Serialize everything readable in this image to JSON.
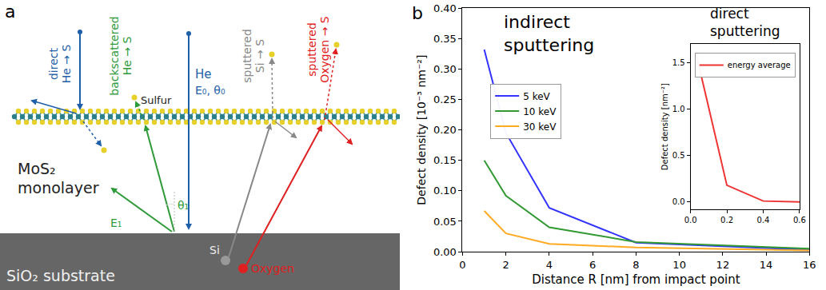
{
  "diagram": {
    "label": "a",
    "substrate": "SiO₂ substrate",
    "layer": [
      "MoS₂",
      "monolayer"
    ],
    "direct": [
      "direct",
      "He → S"
    ],
    "backscattered": [
      "backscattered",
      "He → S"
    ],
    "sulfur": "Sulfur",
    "incident": [
      "He",
      "E₀, θ₀"
    ],
    "exit_angle": [
      "E₁",
      "θ₁"
    ],
    "sputtered_si": [
      "sputtered",
      "Si → S"
    ],
    "sputtered_o": [
      "sputtered",
      "Oxygen → S"
    ],
    "si": "Si",
    "oxygen": "Oxygen"
  },
  "chart_data": [
    {
      "type": "line",
      "title": "indirect sputtering",
      "annotations": [
        "b"
      ],
      "x_label": "Distance R [nm] from impact point",
      "y_label": "Defect density [10⁻³ nm⁻²]",
      "x": [
        1,
        2,
        4,
        8,
        16
      ],
      "series": [
        {
          "name": "5 keV",
          "color": "#3333ff",
          "values": [
            0.332,
            0.195,
            0.072,
            0.015,
            0.003
          ]
        },
        {
          "name": "10 keV",
          "color": "#339933",
          "values": [
            0.15,
            0.092,
            0.04,
            0.016,
            0.005
          ]
        },
        {
          "name": "30 keV",
          "color": "#ffaa22",
          "values": [
            0.067,
            0.03,
            0.013,
            0.007,
            0.002
          ]
        }
      ],
      "xlim": [
        0,
        16
      ],
      "xticks": [
        0,
        2,
        4,
        6,
        8,
        10,
        12,
        14,
        16
      ],
      "ylim": [
        0,
        0.4
      ],
      "yticks": [
        {
          "value": 0,
          "label": "0.00"
        },
        {
          "value": 0.05,
          "label": "0.05"
        },
        {
          "value": 0.1,
          "label": "0.10"
        },
        {
          "value": 0.15,
          "label": "0.15"
        },
        {
          "value": 0.2,
          "label": "0.20"
        },
        {
          "value": 0.25,
          "label": "0.25"
        },
        {
          "value": 0.3,
          "label": "0.30"
        },
        {
          "value": 0.35,
          "label": "0.35"
        },
        {
          "value": 0.4,
          "label": "0.40"
        }
      ],
      "grid": false,
      "legend": "upper left"
    },
    {
      "type": "line",
      "title": "direct sputtering",
      "y_label": "Defect density [nm⁻²]",
      "x": [
        0.03,
        0.2,
        0.4,
        0.6
      ],
      "series": [
        {
          "name": "energy average",
          "color": "#ee3333",
          "values": [
            1.6,
            0.18,
            0.01,
            0.0
          ]
        }
      ],
      "xlim": [
        0,
        0.6
      ],
      "xticks": [
        {
          "value": 0,
          "label": "0.0"
        },
        {
          "value": 0.2,
          "label": "0.2"
        },
        {
          "value": 0.4,
          "label": "0.4"
        },
        {
          "value": 0.6,
          "label": "0.6"
        }
      ],
      "ylim": [
        -0.08,
        1.7
      ],
      "yticks": [
        {
          "value": 0,
          "label": "0.0"
        },
        {
          "value": 0.5,
          "label": "0.5"
        },
        {
          "value": 1.0,
          "label": "1.0"
        },
        {
          "value": 1.5,
          "label": "1.5"
        }
      ],
      "grid": false,
      "legend": "upper right"
    }
  ]
}
